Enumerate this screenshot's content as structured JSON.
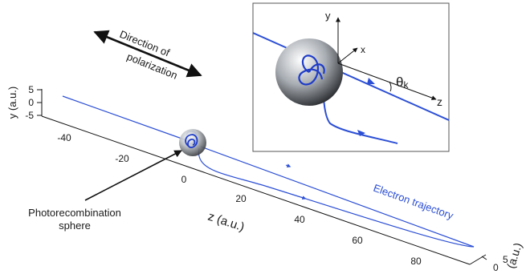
{
  "labels": {
    "direction_line1": "Direction of",
    "direction_line2": "polarization",
    "y_axis": "y (a.u.)",
    "z_axis": "z (a.u.)",
    "sphere_line1": "Photorecombination",
    "sphere_line2": "sphere",
    "trajectory": "Electron trajectory",
    "x_axis_cut": "(a.u.)"
  },
  "y_ticks": [
    "5",
    "0",
    "-5"
  ],
  "z_ticks": [
    "-40",
    "-20",
    "0",
    "20",
    "40",
    "60",
    "80"
  ],
  "x_ticks": [
    "0",
    "5"
  ],
  "inset": {
    "y": "y",
    "x": "x",
    "z": "z",
    "theta": "θ",
    "theta_sub": "k"
  },
  "colors": {
    "trajectory": "#2c4fd4",
    "arrow": "#111111",
    "sphere": "#9aa0a6"
  }
}
